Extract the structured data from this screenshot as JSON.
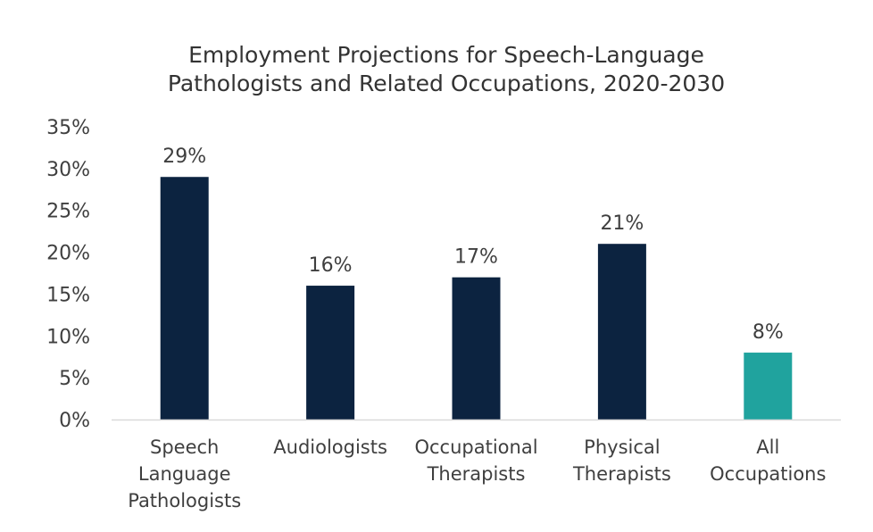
{
  "chart_data": {
    "type": "bar",
    "title": [
      "Employment Projections for Speech-Language",
      "Pathologists and Related Occupations, 2020-2030"
    ],
    "categories": [
      [
        "Speech",
        "Language",
        "Pathologists"
      ],
      [
        "Audiologists"
      ],
      [
        "Occupational",
        "Therapists"
      ],
      [
        "Physical",
        "Therapists"
      ],
      [
        "All",
        "Occupations"
      ]
    ],
    "values": [
      29,
      16,
      17,
      21,
      8
    ],
    "data_labels": [
      "29%",
      "16%",
      "17%",
      "21%",
      "8%"
    ],
    "bar_colors": [
      "#0c2340",
      "#0c2340",
      "#0c2340",
      "#0c2340",
      "#20a39e"
    ],
    "ylim": [
      0,
      35
    ],
    "yticks": [
      0,
      5,
      10,
      15,
      20,
      25,
      30,
      35
    ],
    "ytick_labels": [
      "0%",
      "5%",
      "10%",
      "15%",
      "20%",
      "25%",
      "30%",
      "35%"
    ],
    "xlabel": "",
    "ylabel": "",
    "grid": false,
    "legend": "none",
    "axis_color": "#d9d9d9"
  }
}
